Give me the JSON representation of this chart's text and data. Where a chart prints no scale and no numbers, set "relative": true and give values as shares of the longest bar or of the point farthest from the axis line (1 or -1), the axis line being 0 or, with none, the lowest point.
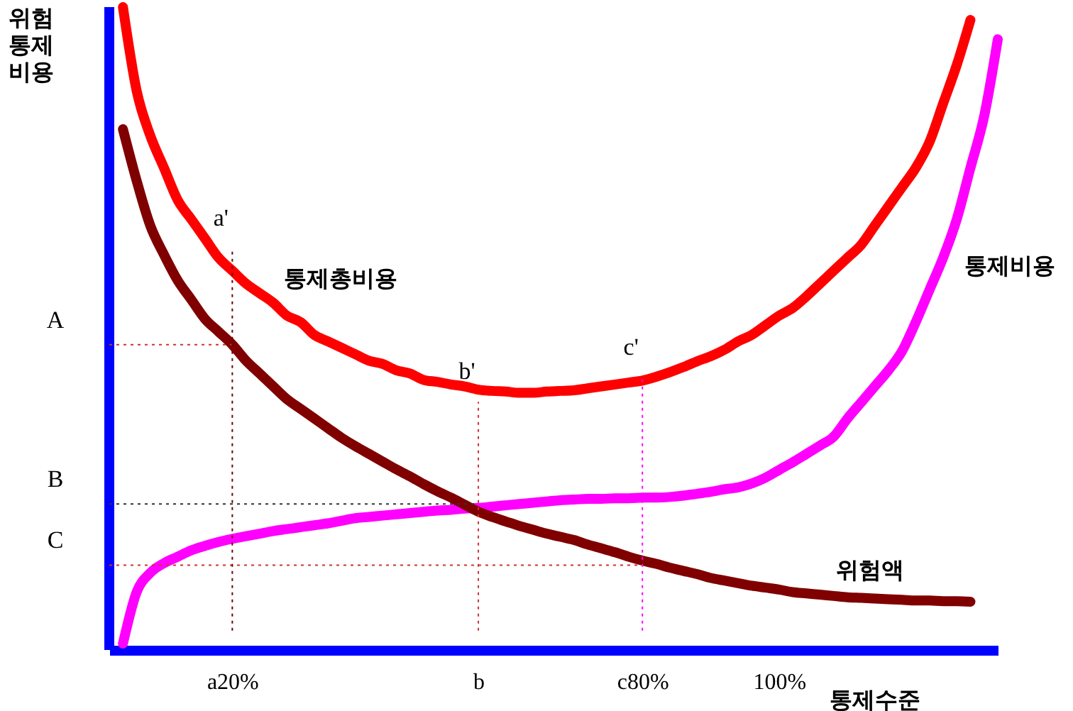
{
  "chart_data": {
    "type": "line",
    "relative": true,
    "xlabel": "통제수준",
    "ylabel": "위험\n통제\n비용",
    "categories": [
      null,
      null,
      null,
      null,
      null,
      null,
      null,
      null,
      null,
      "a20%",
      null,
      null,
      null,
      null,
      null,
      null,
      null,
      null,
      null,
      null,
      null,
      null,
      null,
      null,
      null,
      null,
      null,
      "b",
      null,
      null,
      null,
      null,
      null,
      null,
      null,
      null,
      null,
      null,
      null,
      "c80%",
      null,
      null,
      null,
      null,
      null,
      null,
      null,
      null,
      null,
      "100%",
      null,
      null,
      null,
      null,
      null,
      null,
      null,
      null,
      null,
      null,
      null,
      null,
      null,
      null,
      null,
      null
    ],
    "series": [
      {
        "name": "통제총비용",
        "color": "#ff0000",
        "values": [
          null,
          1.0,
          0.87,
          0.8,
          0.75,
          0.7,
          0.67,
          0.64,
          0.61,
          0.59,
          0.57,
          0.555,
          0.54,
          0.52,
          0.51,
          0.49,
          0.48,
          0.47,
          0.46,
          0.45,
          0.445,
          0.435,
          0.43,
          0.42,
          0.417,
          0.413,
          0.41,
          0.405,
          0.403,
          0.402,
          0.4,
          0.4,
          0.402,
          0.403,
          0.404,
          0.407,
          0.41,
          0.413,
          0.416,
          0.419,
          0.425,
          0.432,
          0.44,
          0.449,
          0.457,
          0.467,
          0.48,
          0.49,
          0.505,
          0.52,
          0.532,
          0.55,
          0.57,
          0.59,
          0.61,
          0.63,
          0.66,
          0.69,
          0.72,
          0.75,
          0.79,
          0.85,
          0.91,
          0.98,
          null,
          null
        ]
      },
      {
        "name": "통제비용",
        "color": "#ff00ff",
        "values": [
          null,
          0.01,
          0.09,
          0.12,
          0.135,
          0.145,
          0.155,
          0.162,
          0.168,
          0.173,
          0.177,
          0.181,
          0.185,
          0.188,
          0.191,
          0.194,
          0.197,
          0.201,
          0.205,
          0.207,
          0.209,
          0.211,
          0.213,
          0.215,
          0.217,
          0.218,
          0.22,
          0.221,
          0.223,
          0.225,
          0.227,
          0.229,
          0.231,
          0.233,
          0.234,
          0.235,
          0.235,
          0.236,
          0.236,
          0.237,
          0.237,
          0.238,
          0.24,
          0.243,
          0.246,
          0.25,
          0.253,
          0.259,
          0.268,
          0.28,
          0.292,
          0.305,
          0.318,
          0.332,
          0.36,
          0.385,
          0.41,
          0.435,
          0.465,
          0.51,
          0.56,
          0.61,
          0.67,
          0.75,
          0.83,
          0.95
        ]
      },
      {
        "name": "위험액",
        "color": "#800000",
        "values": [
          null,
          0.81,
          0.73,
          0.66,
          0.615,
          0.575,
          0.545,
          0.515,
          0.495,
          0.475,
          0.45,
          0.43,
          0.41,
          0.39,
          0.375,
          0.36,
          0.345,
          0.33,
          0.317,
          0.305,
          0.293,
          0.281,
          0.27,
          0.258,
          0.247,
          0.237,
          0.226,
          0.215,
          0.207,
          0.2,
          0.193,
          0.187,
          0.181,
          0.176,
          0.171,
          0.164,
          0.158,
          0.152,
          0.145,
          0.139,
          0.134,
          0.128,
          0.123,
          0.118,
          0.112,
          0.108,
          0.104,
          0.1,
          0.097,
          0.094,
          0.09,
          0.088,
          0.086,
          0.084,
          0.082,
          0.081,
          0.08,
          0.079,
          0.078,
          0.077,
          0.077,
          0.076,
          0.076,
          0.075,
          null,
          null
        ]
      }
    ],
    "ref_lines": [
      {
        "axis": "y",
        "value": 0.475,
        "label": "A",
        "color": "#cc3333",
        "line_style": "dotted"
      },
      {
        "axis": "y",
        "value": 0.227,
        "label": "B",
        "color": "#333333",
        "line_style": "dotted"
      },
      {
        "axis": "y",
        "value": 0.132,
        "label": "C",
        "color": "#cc3333",
        "line_style": "dotted"
      },
      {
        "axis": "x",
        "value": "a20%",
        "color": "#660000",
        "line_style": "dotted"
      },
      {
        "axis": "x",
        "value": "b",
        "color": "#cc3333",
        "line_style": "dotted"
      },
      {
        "axis": "x",
        "value": "c80%",
        "color": "#ff00ff",
        "line_style": "dotted"
      }
    ],
    "annotations": [
      {
        "text": "a'",
        "x": "a20%",
        "y": 0.625
      },
      {
        "text": "b'",
        "x": "b",
        "y": 0.386
      },
      {
        "text": "c'",
        "x": "c80%",
        "y": 0.424
      }
    ]
  }
}
